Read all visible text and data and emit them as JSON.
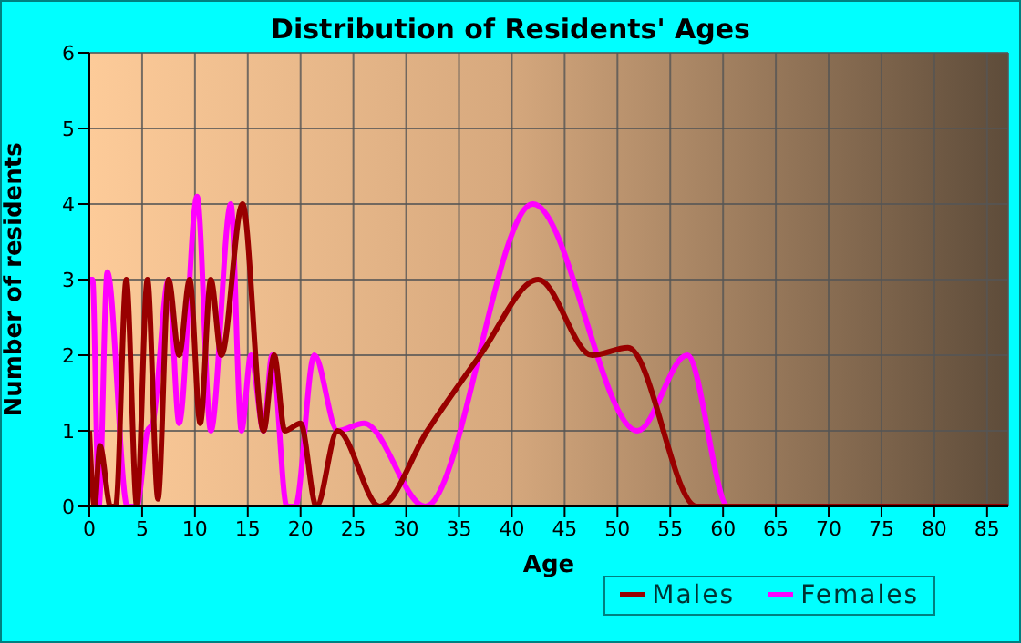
{
  "chart_data": {
    "type": "line",
    "title": "Distribution of Residents' Ages",
    "xlabel": "Age",
    "ylabel": "Number of residents",
    "xlim": [
      0,
      87
    ],
    "xticks": [
      0,
      5,
      10,
      15,
      20,
      25,
      30,
      35,
      40,
      45,
      50,
      55,
      60,
      65,
      70,
      75,
      80,
      85
    ],
    "ylim": [
      0,
      6
    ],
    "yticks": [
      0,
      1,
      2,
      3,
      4,
      5,
      6
    ],
    "grid": true,
    "legend": "bottom",
    "marker": "none",
    "line_style": "solid",
    "series": [
      {
        "name": "Males",
        "color": "#990000",
        "x": [
          0,
          0.5,
          1,
          2,
          2.5,
          3.5,
          4.5,
          5.5,
          6.5,
          7.5,
          8.5,
          9.5,
          10.5,
          11.5,
          12.5,
          14.5,
          16.5,
          17.5,
          18.5,
          20,
          21.5,
          23.5,
          27.5,
          32,
          37,
          42.5,
          47.6,
          51,
          57.5,
          87
        ],
        "values": [
          1,
          0,
          0.8,
          0,
          0,
          3,
          0,
          3,
          0.1,
          3,
          2,
          3,
          1.1,
          3,
          2,
          4,
          1,
          2,
          1,
          1.1,
          0,
          1,
          0,
          1,
          2,
          3,
          2,
          2.1,
          0,
          0
        ]
      },
      {
        "name": "Females",
        "color": "#ff00ff",
        "x": [
          0,
          0.3,
          0.9,
          1.7,
          3.6,
          4.5,
          5.5,
          6,
          7.5,
          8.5,
          10.2,
          11.5,
          13.4,
          14.4,
          15.3,
          16.5,
          17.3,
          18.7,
          19.5,
          21.3,
          23.5,
          26,
          31.8,
          42,
          51.9,
          56.6,
          60.5,
          62
        ],
        "values": [
          3,
          3,
          0,
          3.1,
          0,
          0,
          1,
          1.1,
          3,
          1.1,
          4.1,
          1,
          4,
          1,
          2,
          1,
          2,
          0,
          0,
          2,
          1,
          1.1,
          0,
          4,
          1,
          2,
          0,
          0
        ]
      }
    ]
  }
}
